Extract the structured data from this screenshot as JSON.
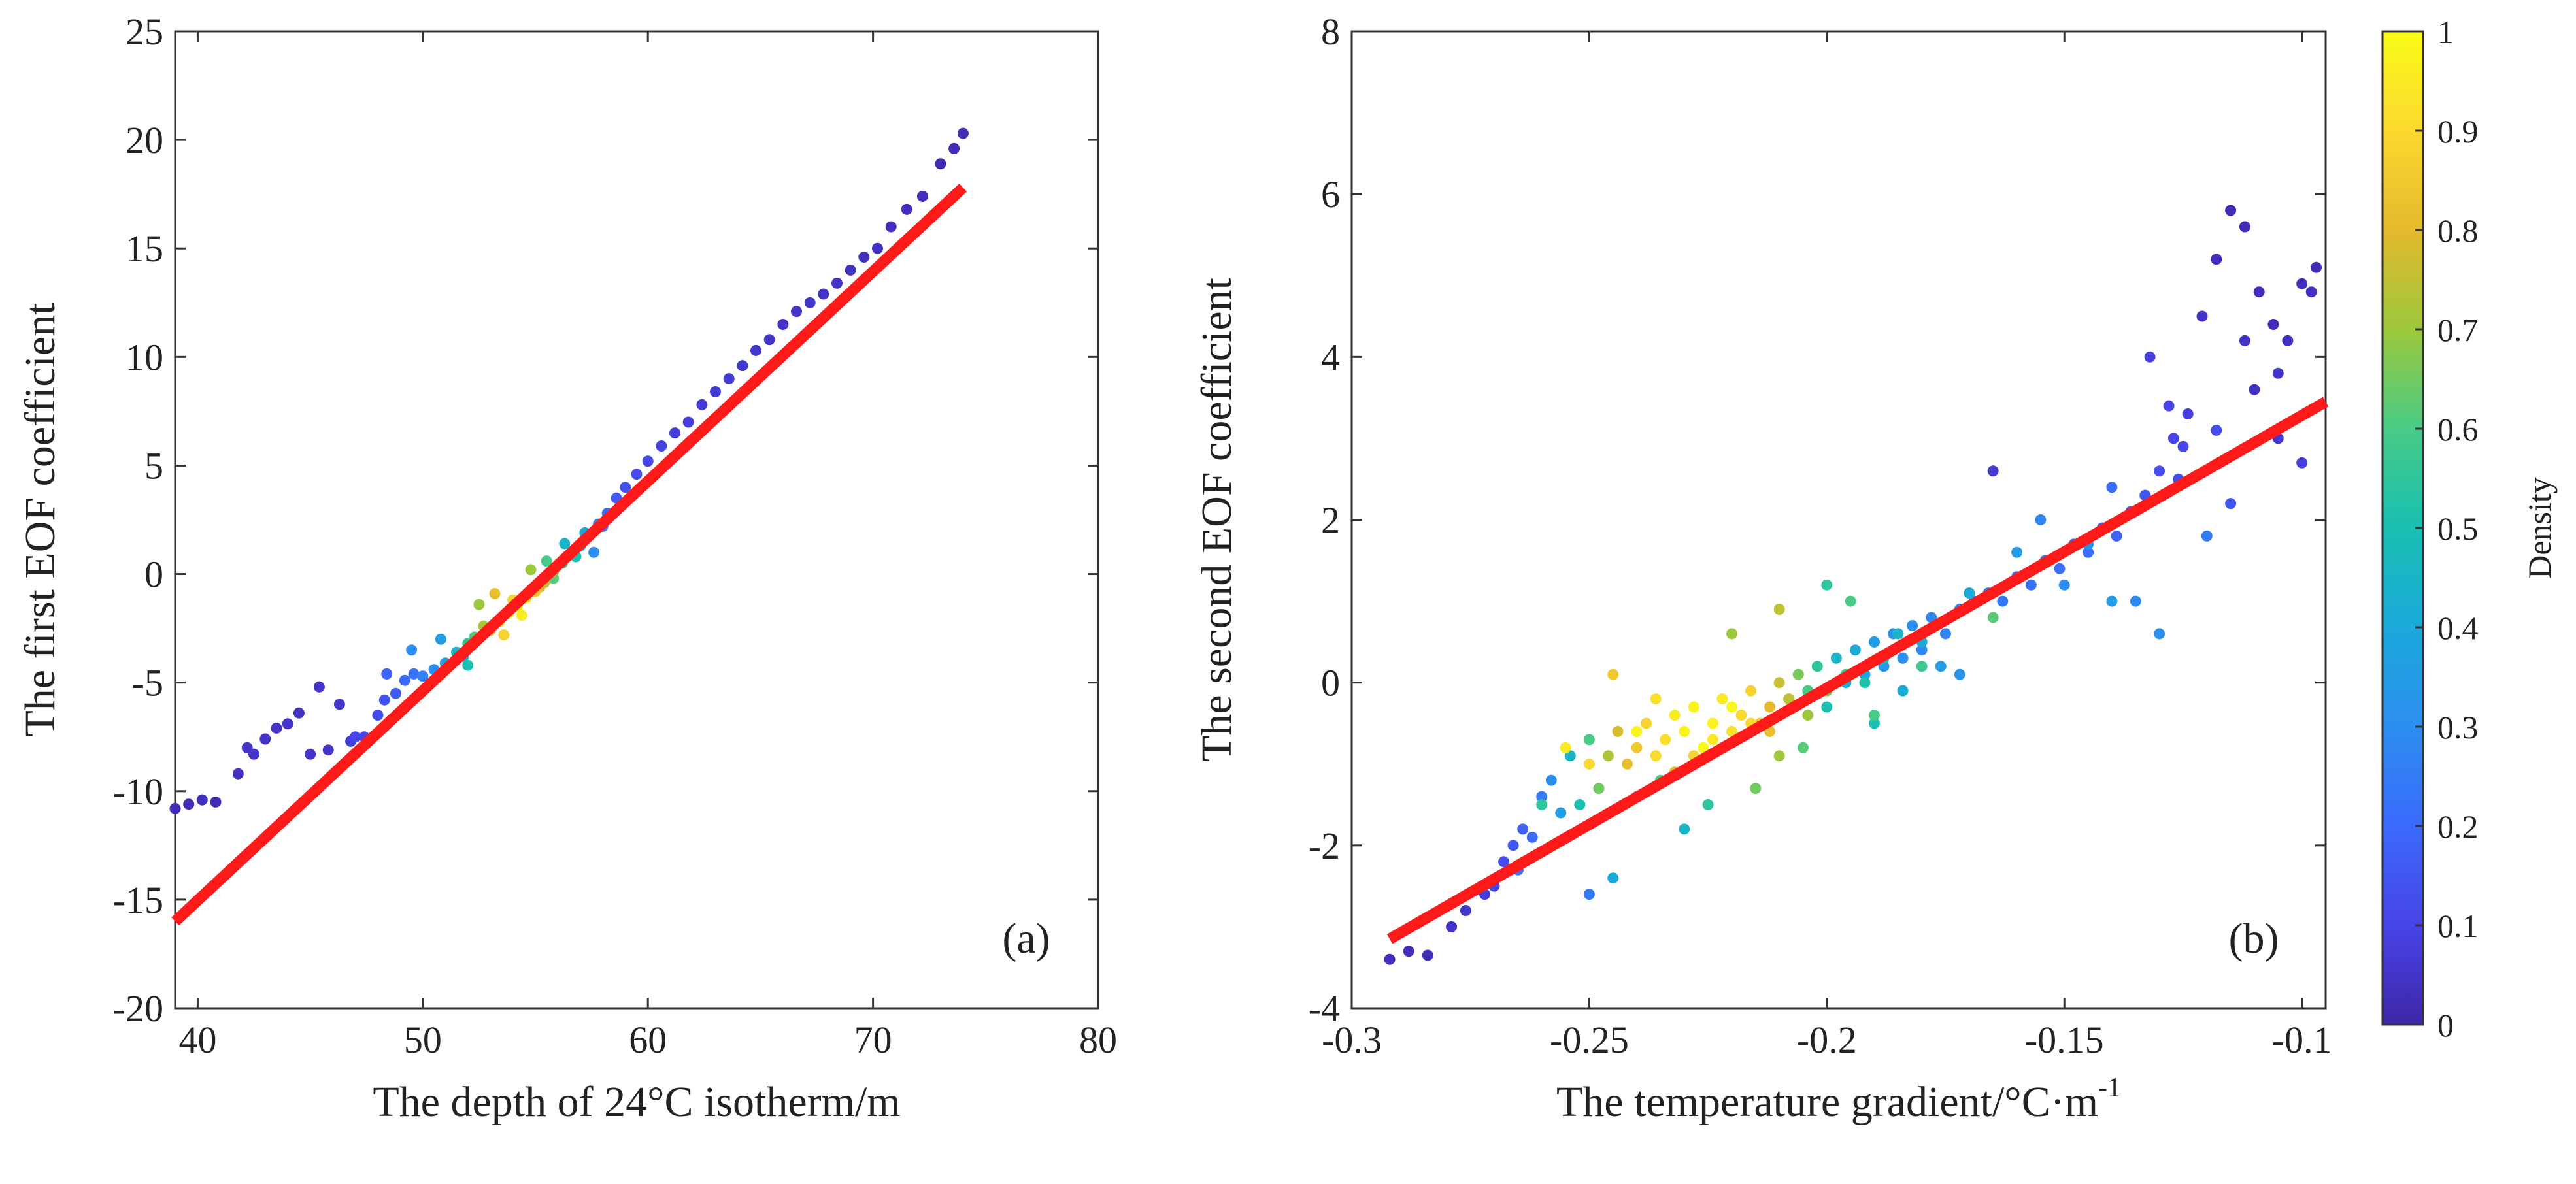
{
  "chart_data": [
    {
      "type": "scatter",
      "panel_label": "(a)",
      "xlabel": "The depth of 24°C isotherm/m",
      "ylabel": "The first EOF coefficient",
      "xlim": [
        39,
        80
      ],
      "ylim": [
        -20,
        25
      ],
      "xticks": [
        40,
        50,
        60,
        70,
        80
      ],
      "xtick_labels": [
        "40",
        "50",
        "60",
        "70",
        "80"
      ],
      "yticks": [
        -20,
        -15,
        -10,
        -5,
        0,
        5,
        10,
        15,
        20,
        25
      ],
      "ytick_labels": [
        "-20",
        "-15",
        "-10",
        "-5",
        "0",
        "5",
        "10",
        "15",
        "20",
        "25"
      ],
      "fit_line": {
        "x": [
          39,
          74
        ],
        "y": [
          -16,
          17.8
        ],
        "color": "#ff1a1a"
      },
      "series": [
        {
          "name": "points",
          "x": [
            39.0,
            39.6,
            40.2,
            40.8,
            41.8,
            42.2,
            42.5,
            43.0,
            43.5,
            44.0,
            44.5,
            45.0,
            45.4,
            45.8,
            46.3,
            46.8,
            47.4,
            48.0,
            48.3,
            48.8,
            49.2,
            49.6,
            50.0,
            50.5,
            51.0,
            51.5,
            52.0,
            52.3,
            52.7,
            53.0,
            53.4,
            53.8,
            54.2,
            54.6,
            55.0,
            55.4,
            55.8,
            56.2,
            56.6,
            57.0,
            57.4,
            57.8,
            58.2,
            58.6,
            59.0,
            59.5,
            60.0,
            60.6,
            61.2,
            61.8,
            62.4,
            63.0,
            63.6,
            64.2,
            64.8,
            65.4,
            66.0,
            66.6,
            67.2,
            67.8,
            68.4,
            69.0,
            69.6,
            70.2,
            70.8,
            71.5,
            72.2,
            73.0,
            73.6,
            74.0,
            52.5,
            53.2,
            54.0,
            54.8,
            55.5,
            56.3,
            57.2,
            51.8,
            50.8,
            49.5,
            48.4,
            47.0,
            58.0,
            56.8,
            55.2,
            53.6,
            52.0,
            54.4,
            55.8,
            57.6
          ],
          "y": [
            -10.8,
            -10.6,
            -10.4,
            -10.5,
            -9.2,
            -8.0,
            -8.3,
            -7.6,
            -7.1,
            -6.9,
            -6.4,
            -8.3,
            -5.2,
            -8.1,
            -6.0,
            -7.7,
            -7.5,
            -6.5,
            -5.8,
            -5.5,
            -4.9,
            -4.6,
            -4.7,
            -4.4,
            -4.1,
            -3.6,
            -3.2,
            -2.9,
            -2.4,
            -2.6,
            -2.2,
            -1.8,
            -1.5,
            -1.1,
            -0.8,
            -0.4,
            0.1,
            0.5,
            0.9,
            1.3,
            1.8,
            2.3,
            2.8,
            3.5,
            4.0,
            4.6,
            5.2,
            5.9,
            6.5,
            7.0,
            7.8,
            8.4,
            9.0,
            9.6,
            10.3,
            10.8,
            11.5,
            12.1,
            12.5,
            12.9,
            13.4,
            14.0,
            14.6,
            15.0,
            16.0,
            16.8,
            17.4,
            18.9,
            19.6,
            20.3,
            -1.4,
            -0.9,
            -1.2,
            0.2,
            0.6,
            1.4,
            1.9,
            -3.8,
            -3.0,
            -3.5,
            -4.6,
            -7.5,
            2.2,
            0.8,
            -0.6,
            -2.8,
            -4.2,
            -1.9,
            -0.2,
            1.0
          ],
          "density": [
            0.02,
            0.02,
            0.03,
            0.02,
            0.04,
            0.05,
            0.05,
            0.05,
            0.05,
            0.05,
            0.04,
            0.05,
            0.05,
            0.05,
            0.06,
            0.08,
            0.1,
            0.12,
            0.14,
            0.16,
            0.2,
            0.22,
            0.26,
            0.3,
            0.36,
            0.45,
            0.55,
            0.62,
            0.72,
            0.8,
            0.9,
            0.95,
            1.0,
            0.92,
            0.85,
            0.75,
            0.66,
            0.58,
            0.5,
            0.42,
            0.34,
            0.28,
            0.2,
            0.16,
            0.14,
            0.12,
            0.1,
            0.09,
            0.08,
            0.08,
            0.07,
            0.07,
            0.07,
            0.06,
            0.06,
            0.05,
            0.05,
            0.05,
            0.05,
            0.05,
            0.05,
            0.04,
            0.04,
            0.04,
            0.03,
            0.03,
            0.03,
            0.02,
            0.02,
            0.02,
            0.7,
            0.82,
            0.88,
            0.7,
            0.6,
            0.45,
            0.38,
            0.4,
            0.35,
            0.3,
            0.18,
            0.1,
            0.25,
            0.5,
            0.78,
            0.88,
            0.5,
            0.95,
            0.62,
            0.3
          ]
        }
      ]
    },
    {
      "type": "scatter",
      "panel_label": "(b)",
      "xlabel": "The temperature gradient/°C·m",
      "xlabel_superscript": "-1",
      "ylabel": "The second EOF coefficient",
      "xlim": [
        -0.3,
        -0.095
      ],
      "ylim": [
        -4,
        8
      ],
      "xticks": [
        -0.3,
        -0.25,
        -0.2,
        -0.15,
        -0.1
      ],
      "xtick_labels": [
        "-0.3",
        "-0.25",
        "-0.2",
        "-0.15",
        "-0.1"
      ],
      "yticks": [
        -4,
        -2,
        0,
        2,
        4,
        6,
        8
      ],
      "ytick_labels": [
        "-4",
        "-2",
        "0",
        "2",
        "4",
        "6",
        "8"
      ],
      "fit_line": {
        "x": [
          -0.292,
          -0.095
        ],
        "y": [
          -3.15,
          3.45
        ],
        "color": "#ff1a1a"
      },
      "series": [
        {
          "name": "points",
          "x": [
            -0.292,
            -0.288,
            -0.284,
            -0.279,
            -0.276,
            -0.272,
            -0.27,
            -0.268,
            -0.266,
            -0.264,
            -0.262,
            -0.26,
            -0.258,
            -0.256,
            -0.254,
            -0.252,
            -0.25,
            -0.248,
            -0.246,
            -0.244,
            -0.242,
            -0.24,
            -0.238,
            -0.236,
            -0.234,
            -0.232,
            -0.23,
            -0.228,
            -0.226,
            -0.224,
            -0.222,
            -0.22,
            -0.218,
            -0.216,
            -0.214,
            -0.212,
            -0.21,
            -0.208,
            -0.206,
            -0.204,
            -0.202,
            -0.2,
            -0.198,
            -0.196,
            -0.194,
            -0.192,
            -0.19,
            -0.188,
            -0.186,
            -0.184,
            -0.182,
            -0.18,
            -0.178,
            -0.175,
            -0.172,
            -0.169,
            -0.166,
            -0.163,
            -0.16,
            -0.157,
            -0.154,
            -0.151,
            -0.148,
            -0.145,
            -0.142,
            -0.139,
            -0.136,
            -0.133,
            -0.13,
            -0.127,
            -0.124,
            -0.121,
            -0.118,
            -0.115,
            -0.112,
            -0.109,
            -0.106,
            -0.103,
            -0.1,
            -0.097,
            -0.255,
            -0.25,
            -0.245,
            -0.24,
            -0.236,
            -0.232,
            -0.228,
            -0.224,
            -0.22,
            -0.216,
            -0.212,
            -0.208,
            -0.204,
            -0.2,
            -0.196,
            -0.192,
            -0.188,
            -0.184,
            -0.18,
            -0.176,
            -0.172,
            -0.26,
            -0.265,
            -0.245,
            -0.25,
            -0.24,
            -0.235,
            -0.23,
            -0.225,
            -0.215,
            -0.21,
            -0.205,
            -0.19,
            -0.185,
            -0.18,
            -0.17,
            -0.165,
            -0.16,
            -0.155,
            -0.15,
            -0.145,
            -0.14,
            -0.135,
            -0.13,
            -0.125,
            -0.12,
            -0.115,
            -0.11,
            -0.105,
            -0.1,
            -0.2,
            -0.195,
            -0.21,
            -0.22,
            -0.19,
            -0.165,
            -0.14,
            -0.128,
            -0.118,
            -0.112,
            -0.105,
            -0.126,
            -0.132,
            -0.098
          ],
          "y": [
            -3.4,
            -3.3,
            -3.35,
            -3.0,
            -2.8,
            -2.6,
            -2.5,
            -2.2,
            -2.0,
            -1.8,
            -1.9,
            -1.4,
            -1.2,
            -1.6,
            -0.9,
            -1.5,
            -0.7,
            -1.3,
            -0.9,
            -0.6,
            -1.0,
            -0.8,
            -0.5,
            -0.9,
            -0.7,
            -0.4,
            -0.6,
            -0.3,
            -0.8,
            -0.5,
            -0.2,
            -0.6,
            -0.4,
            -0.1,
            -0.5,
            -0.3,
            0.0,
            -0.2,
            0.1,
            -0.1,
            0.2,
            -0.3,
            0.3,
            0.0,
            0.4,
            0.1,
            0.5,
            0.2,
            0.6,
            0.3,
            0.7,
            0.4,
            0.8,
            0.6,
            0.9,
            1.0,
            1.1,
            1.0,
            1.3,
            1.2,
            1.5,
            1.4,
            1.7,
            1.6,
            1.9,
            1.8,
            2.1,
            2.3,
            2.6,
            3.0,
            3.3,
            4.5,
            5.2,
            5.8,
            5.6,
            4.8,
            4.4,
            4.2,
            4.9,
            5.1,
            -0.8,
            -1.0,
            0.1,
            -0.6,
            -0.2,
            -1.1,
            -0.9,
            -0.7,
            -0.3,
            -0.5,
            -0.6,
            -0.2,
            -0.4,
            -0.1,
            0.1,
            0.0,
            0.3,
            -0.1,
            0.5,
            0.2,
            0.1,
            -1.5,
            -2.3,
            -2.4,
            -2.6,
            -1.4,
            -1.2,
            -1.8,
            -1.5,
            -1.3,
            -0.9,
            -0.8,
            -0.5,
            0.6,
            0.2,
            1.1,
            0.8,
            1.6,
            2.0,
            1.2,
            1.7,
            2.4,
            1.0,
            0.6,
            2.9,
            1.8,
            2.2,
            3.6,
            3.0,
            2.7,
            1.2,
            1.0,
            0.9,
            0.6,
            -0.4,
            2.6,
            1.0,
            3.4,
            3.1,
            4.2,
            3.8,
            2.5,
            4.0,
            4.8
          ],
          "density": [
            0.03,
            0.03,
            0.03,
            0.05,
            0.06,
            0.08,
            0.1,
            0.12,
            0.15,
            0.18,
            0.2,
            0.25,
            0.3,
            0.35,
            0.45,
            0.5,
            0.6,
            0.65,
            0.72,
            0.78,
            0.82,
            0.85,
            0.88,
            0.9,
            0.92,
            0.95,
            0.97,
            0.98,
            1.0,
            0.97,
            0.95,
            0.92,
            0.9,
            0.88,
            0.85,
            0.8,
            0.76,
            0.72,
            0.66,
            0.6,
            0.55,
            0.5,
            0.45,
            0.42,
            0.4,
            0.38,
            0.36,
            0.34,
            0.32,
            0.3,
            0.3,
            0.28,
            0.28,
            0.27,
            0.26,
            0.25,
            0.24,
            0.24,
            0.23,
            0.22,
            0.22,
            0.21,
            0.2,
            0.2,
            0.19,
            0.18,
            0.17,
            0.15,
            0.12,
            0.1,
            0.08,
            0.05,
            0.03,
            0.02,
            0.02,
            0.03,
            0.03,
            0.04,
            0.03,
            0.02,
            0.95,
            0.9,
            0.85,
            0.98,
            0.92,
            0.8,
            0.88,
            0.95,
            0.99,
            0.9,
            0.82,
            0.75,
            0.7,
            0.65,
            0.6,
            0.52,
            0.48,
            0.42,
            0.4,
            0.35,
            0.33,
            0.55,
            0.2,
            0.4,
            0.25,
            0.5,
            0.6,
            0.45,
            0.55,
            0.65,
            0.7,
            0.62,
            0.5,
            0.45,
            0.58,
            0.4,
            0.62,
            0.35,
            0.28,
            0.3,
            0.32,
            0.2,
            0.28,
            0.3,
            0.1,
            0.25,
            0.15,
            0.05,
            0.06,
            0.08,
            0.55,
            0.6,
            0.75,
            0.7,
            0.6,
            0.06,
            0.35,
            0.1,
            0.12,
            0.05,
            0.05,
            0.12,
            0.08,
            0.04
          ]
        }
      ]
    }
  ],
  "colorbar": {
    "label": "Density",
    "ticks": [
      0,
      0.1,
      0.2,
      0.3,
      0.4,
      0.5,
      0.6,
      0.7,
      0.8,
      0.9,
      1
    ],
    "tick_labels": [
      "0",
      "0.1",
      "0.2",
      "0.3",
      "0.4",
      "0.5",
      "0.6",
      "0.7",
      "0.8",
      "0.9",
      "1"
    ],
    "colormap": [
      "#3e26a8",
      "#4744e8",
      "#3b6afc",
      "#2c8ef0",
      "#1ba9da",
      "#18bfb2",
      "#48cb86",
      "#9cc83d",
      "#e4b92c",
      "#fbd92f",
      "#f9fb15"
    ]
  }
}
